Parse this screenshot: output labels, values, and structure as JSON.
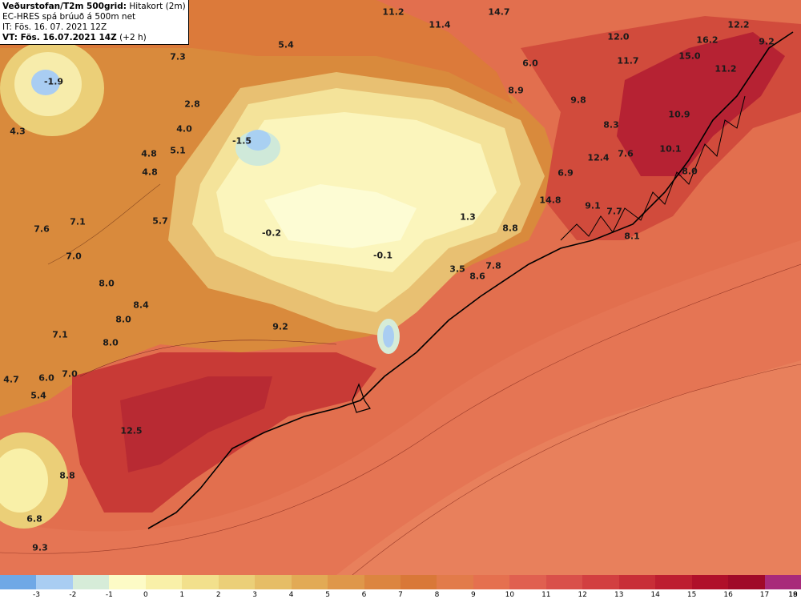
{
  "header": {
    "title_bold": "Veðurstofan/T2m 500grid:",
    "title_rest": "Hitakort (2m)",
    "line2": "EC-HRES spá brúuð á 500m net",
    "line3": "IT: Fös. 16. 07. 2021 12Z",
    "line4_bold": "VT: Fös. 16.07.2021 14Z",
    "line4_rest": "(+2 h)"
  },
  "map_labels": [
    {
      "text": "-1.9"
    },
    {
      "text": "7.3"
    },
    {
      "text": "5.4"
    },
    {
      "text": "11.2"
    },
    {
      "text": "11.4"
    },
    {
      "text": "14.7"
    },
    {
      "text": "12.0"
    },
    {
      "text": "12.2"
    },
    {
      "text": "16.2"
    },
    {
      "text": "9.2"
    },
    {
      "text": "15.0"
    },
    {
      "text": "11.2"
    },
    {
      "text": "6.0"
    },
    {
      "text": "11.7"
    },
    {
      "text": "8.9"
    },
    {
      "text": "9.8"
    },
    {
      "text": "10.9"
    },
    {
      "text": "8.3"
    },
    {
      "text": "2.8"
    },
    {
      "text": "4.0"
    },
    {
      "text": "4.3"
    },
    {
      "text": "5.1"
    },
    {
      "text": "-1.5"
    },
    {
      "text": "4.8"
    },
    {
      "text": "4.8"
    },
    {
      "text": "10.1"
    },
    {
      "text": "7.6"
    },
    {
      "text": "12.4"
    },
    {
      "text": "8.0"
    },
    {
      "text": "6.9"
    },
    {
      "text": "7.1"
    },
    {
      "text": "5.7"
    },
    {
      "text": "14.8"
    },
    {
      "text": "9.1"
    },
    {
      "text": "7.7"
    },
    {
      "text": "1.3"
    },
    {
      "text": "7.6"
    },
    {
      "text": "-0.2"
    },
    {
      "text": "8.8"
    },
    {
      "text": "8.1"
    },
    {
      "text": "7.0"
    },
    {
      "text": "-0.1"
    },
    {
      "text": "7.8"
    },
    {
      "text": "3.5"
    },
    {
      "text": "8.6"
    },
    {
      "text": "8.0"
    },
    {
      "text": "8.4"
    },
    {
      "text": "8.0"
    },
    {
      "text": "9.2"
    },
    {
      "text": "7.1"
    },
    {
      "text": "8.0"
    },
    {
      "text": "4.7"
    },
    {
      "text": "6.0"
    },
    {
      "text": "7.0"
    },
    {
      "text": "5.4"
    },
    {
      "text": "12.5"
    },
    {
      "text": "8.8"
    },
    {
      "text": "6.8"
    },
    {
      "text": "9.3"
    }
  ],
  "legend": {
    "ticks": [
      "-3",
      "-2",
      "-1",
      "0",
      "1",
      "2",
      "3",
      "4",
      "5",
      "6",
      "7",
      "8",
      "9",
      "10",
      "11",
      "12",
      "13",
      "14",
      "15",
      "16",
      "17",
      "18",
      "19"
    ],
    "colors": [
      "#6fa8e6",
      "#a9cdf2",
      "#d6ecd8",
      "#fdfbc6",
      "#f9f0a8",
      "#f2e08c",
      "#ebcf78",
      "#e6bd66",
      "#e2aa55",
      "#df974a",
      "#dc8540",
      "#d97838",
      "#e27b4a",
      "#e5704f",
      "#e06050",
      "#d9504a",
      "#d23f40",
      "#c82e37",
      "#bd1e30",
      "#b0102a",
      "#a00a28",
      "#a82a7a"
    ]
  }
}
